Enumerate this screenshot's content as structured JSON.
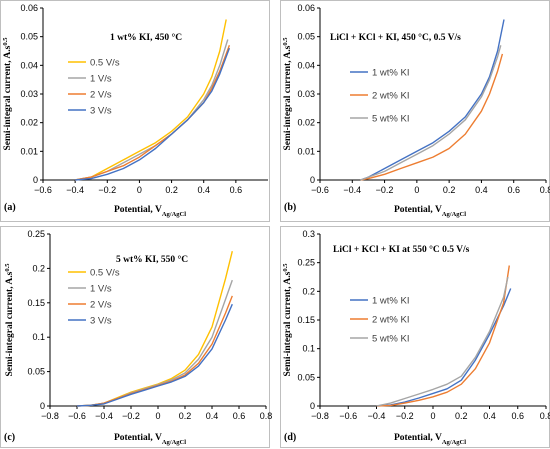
{
  "chart_data": [
    {
      "id": "a",
      "panel_label": "(a)",
      "type": "line",
      "title": "1 wt% KI, 450 °C",
      "xlabel_main": "Potential, V",
      "xlabel_sub": "Ag/AgCl",
      "ylabel_main": "Semi-integral current, A.s",
      "ylabel_sup": "0.5",
      "xlim": [
        -0.6,
        0.8
      ],
      "ylim": [
        0,
        0.06
      ],
      "xticks": [
        -0.6,
        -0.4,
        -0.2,
        0,
        0.2,
        0.4,
        0.6
      ],
      "yticks": [
        0,
        0.01,
        0.02,
        0.03,
        0.04,
        0.05,
        0.06
      ],
      "xtick_labels": [
        "−0.6",
        "−0.4",
        "−0.2",
        "0",
        "0.2",
        "0.4",
        "0.6"
      ],
      "ytick_labels": [
        "0",
        "0.01",
        "0.02",
        "0.03",
        "0.04",
        "0.05",
        "0.06"
      ],
      "legend_position": "left",
      "series": [
        {
          "name": "0.5 V/s",
          "color": "#FFC000",
          "x": [
            -0.4,
            -0.3,
            -0.2,
            -0.1,
            0,
            0.1,
            0.2,
            0.3,
            0.4,
            0.45,
            0.5,
            0.54
          ],
          "y": [
            0,
            0.001,
            0.004,
            0.007,
            0.01,
            0.013,
            0.017,
            0.022,
            0.03,
            0.036,
            0.045,
            0.056
          ]
        },
        {
          "name": "1 V/s",
          "color": "#A5A5A5",
          "x": [
            -0.4,
            -0.3,
            -0.2,
            -0.1,
            0,
            0.1,
            0.2,
            0.3,
            0.4,
            0.45,
            0.5,
            0.55
          ],
          "y": [
            0,
            0.001,
            0.003,
            0.006,
            0.009,
            0.012,
            0.016,
            0.021,
            0.028,
            0.033,
            0.04,
            0.049
          ]
        },
        {
          "name": "2 V/s",
          "color": "#ED7D31",
          "x": [
            -0.4,
            -0.3,
            -0.2,
            -0.1,
            0,
            0.1,
            0.2,
            0.3,
            0.4,
            0.45,
            0.5,
            0.56
          ],
          "y": [
            0,
            0.001,
            0.003,
            0.005,
            0.008,
            0.012,
            0.016,
            0.021,
            0.027,
            0.032,
            0.038,
            0.047
          ]
        },
        {
          "name": "3 V/s",
          "color": "#4472C4",
          "x": [
            -0.4,
            -0.3,
            -0.2,
            -0.1,
            0,
            0.1,
            0.2,
            0.3,
            0.4,
            0.45,
            0.5,
            0.56
          ],
          "y": [
            0,
            0.0005,
            0.002,
            0.004,
            0.007,
            0.011,
            0.016,
            0.021,
            0.027,
            0.031,
            0.037,
            0.046
          ]
        }
      ]
    },
    {
      "id": "b",
      "panel_label": "(b)",
      "type": "line",
      "title": "LiCl + KCl + KI, 450 °C, 0.5 V/s",
      "xlabel_main": "Potential, V",
      "xlabel_sub": "Ag/AgCl",
      "ylabel_main": "Semi-integral current, A.s",
      "ylabel_sup": "0.5",
      "xlim": [
        -0.6,
        0.8
      ],
      "ylim": [
        0,
        0.06
      ],
      "xticks": [
        -0.6,
        -0.4,
        -0.2,
        0,
        0.2,
        0.4,
        0.6,
        0.8
      ],
      "yticks": [
        0,
        0.01,
        0.02,
        0.03,
        0.04,
        0.05,
        0.06
      ],
      "xtick_labels": [
        "−0.6",
        "−0.4",
        "−0.2",
        "0",
        "0.2",
        "0.4",
        "0.6",
        "0.8"
      ],
      "ytick_labels": [
        "0",
        "0.01",
        "0.02",
        "0.03",
        "0.04",
        "0.05",
        "0.06"
      ],
      "legend_position": "left",
      "series": [
        {
          "name": "1 wt% KI",
          "color": "#4472C4",
          "x": [
            -0.35,
            -0.3,
            -0.2,
            -0.1,
            0,
            0.1,
            0.2,
            0.3,
            0.4,
            0.45,
            0.5,
            0.54
          ],
          "y": [
            0,
            0.001,
            0.004,
            0.007,
            0.01,
            0.013,
            0.017,
            0.022,
            0.03,
            0.036,
            0.045,
            0.056
          ]
        },
        {
          "name": "2 wt% KI",
          "color": "#ED7D31",
          "x": [
            -0.35,
            -0.3,
            -0.2,
            -0.1,
            0,
            0.1,
            0.2,
            0.3,
            0.4,
            0.45,
            0.5,
            0.53
          ],
          "y": [
            0,
            0.0005,
            0.002,
            0.004,
            0.006,
            0.008,
            0.011,
            0.016,
            0.024,
            0.03,
            0.038,
            0.044
          ]
        },
        {
          "name": "5 wt% KI",
          "color": "#A5A5A5",
          "x": [
            -0.35,
            -0.3,
            -0.2,
            -0.1,
            0,
            0.1,
            0.2,
            0.3,
            0.4,
            0.45,
            0.5,
            0.52
          ],
          "y": [
            0,
            0.001,
            0.003,
            0.006,
            0.009,
            0.012,
            0.016,
            0.021,
            0.029,
            0.035,
            0.043,
            0.047
          ]
        }
      ]
    },
    {
      "id": "c",
      "panel_label": "(c)",
      "type": "line",
      "title": "5 wt% KI, 550 °C",
      "xlabel_main": "Potential, V",
      "xlabel_sub": "Ag/AgCl",
      "ylabel_main": "Semi-integral current, A.s",
      "ylabel_sup": "0.5",
      "xlim": [
        -0.8,
        0.8
      ],
      "ylim": [
        0,
        0.25
      ],
      "xticks": [
        -0.8,
        -0.6,
        -0.4,
        -0.2,
        0,
        0.2,
        0.4,
        0.6,
        0.8
      ],
      "yticks": [
        0,
        0.05,
        0.1,
        0.15,
        0.2,
        0.25
      ],
      "xtick_labels": [
        "−0.8",
        "−0.6",
        "−0.4",
        "−0.2",
        "0",
        "0.2",
        "0.4",
        "0.6",
        "0.8"
      ],
      "ytick_labels": [
        "0",
        "0.05",
        "0.1",
        "0.15",
        "0.2",
        "0.25"
      ],
      "legend_position": "left",
      "series": [
        {
          "name": "0.5 V/s",
          "color": "#FFC000",
          "x": [
            -0.6,
            -0.5,
            -0.4,
            -0.3,
            -0.2,
            -0.1,
            0,
            0.1,
            0.2,
            0.3,
            0.4,
            0.5,
            0.55
          ],
          "y": [
            0,
            0.001,
            0.004,
            0.012,
            0.02,
            0.026,
            0.032,
            0.04,
            0.052,
            0.075,
            0.115,
            0.185,
            0.225
          ]
        },
        {
          "name": "1 V/s",
          "color": "#A5A5A5",
          "x": [
            -0.6,
            -0.5,
            -0.4,
            -0.3,
            -0.2,
            -0.1,
            0,
            0.1,
            0.2,
            0.3,
            0.4,
            0.5,
            0.55
          ],
          "y": [
            0,
            0.001,
            0.004,
            0.011,
            0.019,
            0.025,
            0.031,
            0.038,
            0.048,
            0.068,
            0.1,
            0.155,
            0.183
          ]
        },
        {
          "name": "2 V/s",
          "color": "#ED7D31",
          "x": [
            -0.6,
            -0.5,
            -0.4,
            -0.3,
            -0.2,
            -0.1,
            0,
            0.1,
            0.2,
            0.3,
            0.4,
            0.5,
            0.55
          ],
          "y": [
            0,
            0.001,
            0.004,
            0.011,
            0.018,
            0.024,
            0.03,
            0.036,
            0.045,
            0.062,
            0.09,
            0.135,
            0.16
          ]
        },
        {
          "name": "3 V/s",
          "color": "#4472C4",
          "x": [
            -0.6,
            -0.5,
            -0.4,
            -0.3,
            -0.2,
            -0.1,
            0,
            0.1,
            0.2,
            0.3,
            0.4,
            0.5,
            0.55
          ],
          "y": [
            0,
            0.001,
            0.003,
            0.01,
            0.017,
            0.023,
            0.029,
            0.035,
            0.043,
            0.058,
            0.083,
            0.125,
            0.148
          ]
        }
      ]
    },
    {
      "id": "d",
      "panel_label": "(d)",
      "type": "line",
      "title": "LiCl + KCl + KI at 550 °C 0.5 V/s",
      "xlabel_main": "Potential, V",
      "xlabel_sub": "Ag/AgCl",
      "ylabel_main": "Semi-integral current, A.s",
      "ylabel_sup": "0.5",
      "xlim": [
        -0.8,
        0.8
      ],
      "ylim": [
        0,
        0.3
      ],
      "xticks": [
        -0.8,
        -0.6,
        -0.4,
        -0.2,
        0,
        0.2,
        0.4,
        0.6,
        0.8
      ],
      "yticks": [
        0,
        0.05,
        0.1,
        0.15,
        0.2,
        0.25,
        0.3
      ],
      "xtick_labels": [
        "−0.8",
        "−0.6",
        "−0.4",
        "−0.2",
        "0",
        "0.2",
        "0.4",
        "0.6",
        "0.8"
      ],
      "ytick_labels": [
        "0",
        "0.05",
        "0.1",
        "0.15",
        "0.2",
        "0.25",
        "0.3"
      ],
      "legend_position": "left",
      "series": [
        {
          "name": "1 wt% KI",
          "color": "#4472C4",
          "x": [
            -0.4,
            -0.3,
            -0.2,
            -0.1,
            0,
            0.1,
            0.2,
            0.3,
            0.4,
            0.5,
            0.55
          ],
          "y": [
            0,
            0.002,
            0.007,
            0.014,
            0.022,
            0.03,
            0.045,
            0.08,
            0.125,
            0.175,
            0.205
          ]
        },
        {
          "name": "2 wt% KI",
          "color": "#ED7D31",
          "x": [
            -0.4,
            -0.3,
            -0.2,
            -0.1,
            0,
            0.1,
            0.2,
            0.3,
            0.4,
            0.5,
            0.54
          ],
          "y": [
            0,
            0.001,
            0.005,
            0.01,
            0.016,
            0.024,
            0.038,
            0.065,
            0.11,
            0.18,
            0.245
          ]
        },
        {
          "name": "5 wt% KI",
          "color": "#A5A5A5",
          "x": [
            -0.4,
            -0.3,
            -0.2,
            -0.1,
            0,
            0.1,
            0.2,
            0.3,
            0.4,
            0.5,
            0.53
          ],
          "y": [
            0,
            0.005,
            0.013,
            0.021,
            0.029,
            0.038,
            0.052,
            0.085,
            0.13,
            0.19,
            0.225
          ]
        }
      ]
    }
  ]
}
